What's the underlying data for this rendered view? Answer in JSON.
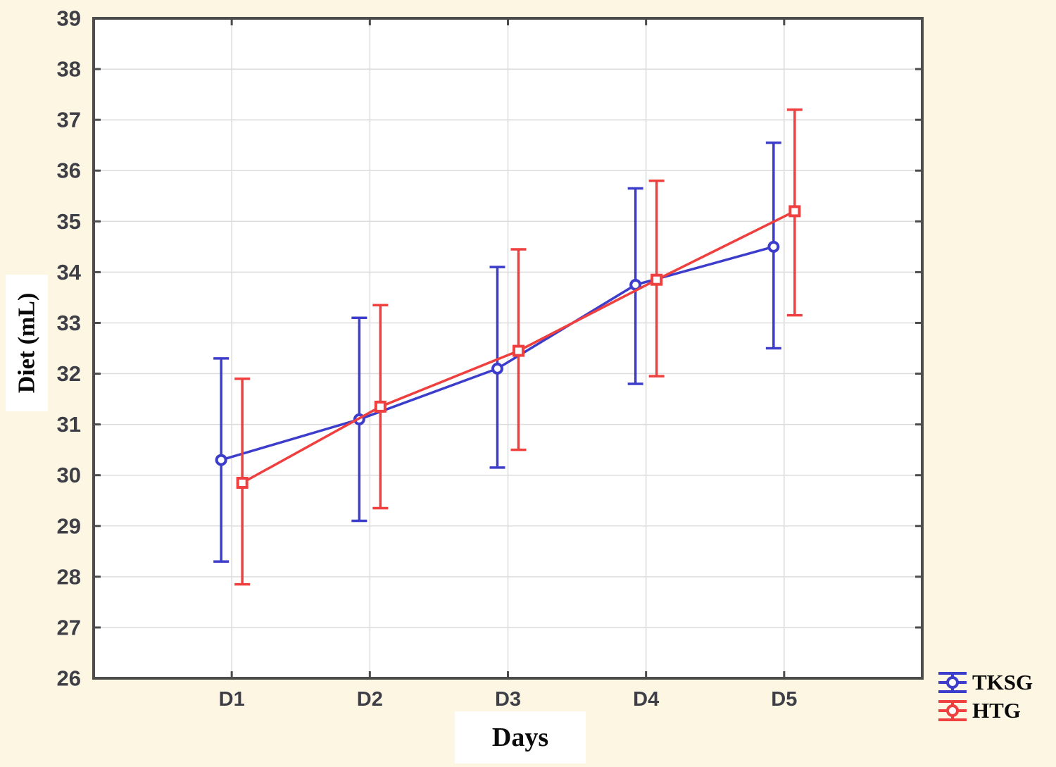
{
  "figure": {
    "background_color": "#fdf6e3",
    "plot_background": "#ffffff",
    "grid_color": "#dcdcdc",
    "frame_color": "#4c4c4c",
    "tick_text_color": "#3e3e46"
  },
  "axes": {
    "y_title": "Diet (mL)",
    "x_title": "Days"
  },
  "legend": [
    {
      "label": "TKSG",
      "color": "#3d3dcc",
      "marker": "circle"
    },
    {
      "label": "HTG",
      "color": "#ef3f3f",
      "marker": "square"
    }
  ],
  "chart_data": {
    "type": "line",
    "title": "",
    "xlabel": "Days",
    "ylabel": "Diet (mL)",
    "categories": [
      "D1",
      "D2",
      "D3",
      "D4",
      "D5"
    ],
    "ylim": [
      26,
      39
    ],
    "y_tick_step": 1,
    "grid": true,
    "legend_position": "bottom-right",
    "error_bars": true,
    "series": [
      {
        "name": "TKSG",
        "color": "#3d3dcc",
        "marker": "circle",
        "x_offset": -15,
        "values": [
          30.3,
          31.1,
          32.1,
          33.75,
          34.5
        ],
        "error_low": [
          28.3,
          29.1,
          30.15,
          31.8,
          32.5
        ],
        "error_high": [
          32.3,
          33.1,
          34.1,
          35.65,
          36.55
        ]
      },
      {
        "name": "HTG",
        "color": "#ef3f3f",
        "marker": "square",
        "x_offset": 15,
        "values": [
          29.85,
          31.35,
          32.45,
          33.85,
          35.2
        ],
        "error_low": [
          27.85,
          29.35,
          30.5,
          31.95,
          33.15
        ],
        "error_high": [
          31.9,
          33.35,
          34.45,
          35.8,
          37.2
        ]
      }
    ]
  }
}
